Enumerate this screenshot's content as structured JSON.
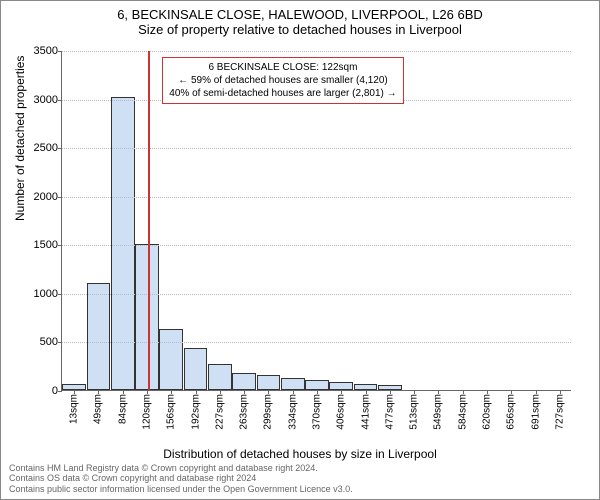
{
  "header": {
    "line1": "6, BECKINSALE CLOSE, HALEWOOD, LIVERPOOL, L26 6BD",
    "line2": "Size of property relative to detached houses in Liverpool"
  },
  "axes": {
    "ylabel": "Number of detached properties",
    "xlabel": "Distribution of detached houses by size in Liverpool",
    "ylim": [
      0,
      3500
    ],
    "ytick_step": 500,
    "yticks": [
      0,
      500,
      1000,
      1500,
      2000,
      2500,
      3000,
      3500
    ],
    "grid_color": "#bbbbbb",
    "axis_color": "#666666"
  },
  "chart": {
    "type": "histogram",
    "bar_fill": "#cfe0f5",
    "bar_border": "#333333",
    "background_color": "#ffffff",
    "categories": [
      "13sqm",
      "49sqm",
      "84sqm",
      "120sqm",
      "156sqm",
      "192sqm",
      "227sqm",
      "263sqm",
      "299sqm",
      "334sqm",
      "370sqm",
      "406sqm",
      "441sqm",
      "477sqm",
      "513sqm",
      "549sqm",
      "584sqm",
      "620sqm",
      "656sqm",
      "691sqm",
      "727sqm"
    ],
    "values": [
      60,
      1100,
      3020,
      1500,
      630,
      430,
      270,
      180,
      150,
      120,
      100,
      80,
      60,
      50,
      0,
      0,
      0,
      0,
      0,
      0,
      0
    ]
  },
  "marker": {
    "value_sqm": 122,
    "color": "#cc3333"
  },
  "annotation": {
    "border_color": "#cc3333",
    "line1": "6 BECKINSALE CLOSE: 122sqm",
    "line2": "← 59% of detached houses are smaller (4,120)",
    "line3": "40% of semi-detached houses are larger (2,801) →"
  },
  "footer": {
    "line1": "Contains HM Land Registry data © Crown copyright and database right 2024.",
    "line2": "Contains OS data © Crown copyright and database right 2024",
    "line3": "Contains public sector information licensed under the Open Government Licence v3.0."
  },
  "fonts": {
    "title_fontsize": 13,
    "label_fontsize": 12,
    "tick_fontsize": 11,
    "annotation_fontsize": 10,
    "footer_fontsize": 9
  }
}
